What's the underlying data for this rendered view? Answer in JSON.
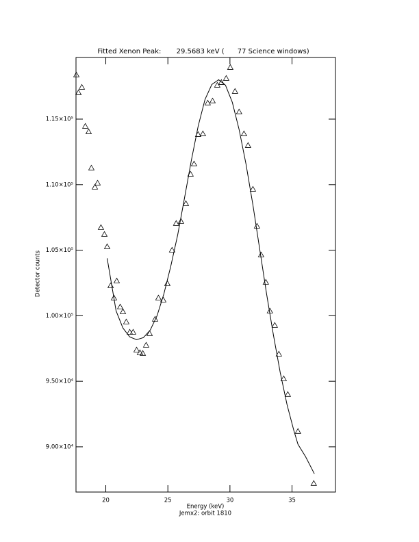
{
  "chart_data": {
    "type": "scatter",
    "title": "Fitted Xenon Peak:       29.5683 keV (      77 Science windows)",
    "x_label": "Energy (keV)",
    "subtitle": "Jemx2: orbit 1810",
    "y_label": "Detector counts",
    "xlim": [
      17.6,
      38.5
    ],
    "ylim": [
      86550,
      119700
    ],
    "xticks": [
      20,
      25,
      30,
      35
    ],
    "yticks": [
      {
        "value": 90000,
        "label": "9.00×10⁴"
      },
      {
        "value": 95000,
        "label": "9.50×10⁴"
      },
      {
        "value": 100000,
        "label": "1.00×10⁵"
      },
      {
        "value": 105000,
        "label": "1.05×10⁵"
      },
      {
        "value": 110000,
        "label": "1.10×10⁵"
      },
      {
        "value": 115000,
        "label": "1.15×10⁵"
      }
    ],
    "series": [
      {
        "type": "scatter",
        "color": "#000000",
        "x": [
          17.63,
          17.8,
          18.07,
          18.35,
          18.62,
          18.84,
          19.12,
          19.34,
          19.61,
          19.89,
          20.11,
          20.39,
          20.66,
          20.88,
          21.16,
          21.38,
          21.65,
          21.93,
          22.2,
          22.48,
          22.75,
          22.98,
          23.25,
          23.53,
          23.97,
          24.24,
          24.63,
          24.96,
          25.34,
          25.67,
          26.06,
          26.45,
          26.83,
          27.11,
          27.44,
          27.82,
          28.21,
          28.6,
          28.98,
          29.31,
          29.7,
          30.03,
          30.41,
          30.74,
          31.13,
          31.46,
          31.85,
          32.18,
          32.51,
          32.89,
          33.22,
          33.61,
          33.94,
          34.33,
          34.66,
          35.48,
          36.75
        ],
        "values": [
          118371,
          117014,
          117432,
          114457,
          114039,
          111273,
          109812,
          110125,
          106733,
          106211,
          105271,
          102296,
          101357,
          102662,
          100678,
          100313,
          99530,
          98747,
          98747,
          97390,
          97182,
          97130,
          97756,
          98643,
          99739,
          101357,
          101200,
          102453,
          105010,
          107046,
          107202,
          108559,
          110803,
          111586,
          113830,
          113883,
          116231,
          116388,
          117588,
          117797,
          118110,
          118945,
          117119,
          115553,
          113883,
          112996,
          109655,
          106837,
          104645,
          102557,
          100365,
          99269,
          97077,
          95198,
          93998,
          91180,
          87213
        ]
      },
      {
        "type": "line",
        "color": "#000000",
        "x": [
          20.11,
          20.83,
          21.38,
          21.93,
          22.48,
          23.03,
          23.58,
          24.13,
          24.68,
          25.23,
          25.79,
          26.34,
          26.89,
          27.44,
          27.99,
          28.54,
          29.09,
          29.64,
          30.19,
          30.74,
          31.29,
          31.85,
          32.4,
          32.95,
          33.5,
          34.05,
          34.6,
          35.15,
          35.48,
          36.09,
          36.8
        ],
        "values": [
          104384,
          100365,
          99061,
          98382,
          98173,
          98330,
          98904,
          100000,
          101670,
          103758,
          106158,
          108977,
          111847,
          114457,
          116492,
          117641,
          118006,
          117588,
          116283,
          114196,
          111586,
          108455,
          105062,
          101670,
          98539,
          95668,
          93215,
          91232,
          90188,
          89249,
          87944
        ]
      }
    ]
  }
}
